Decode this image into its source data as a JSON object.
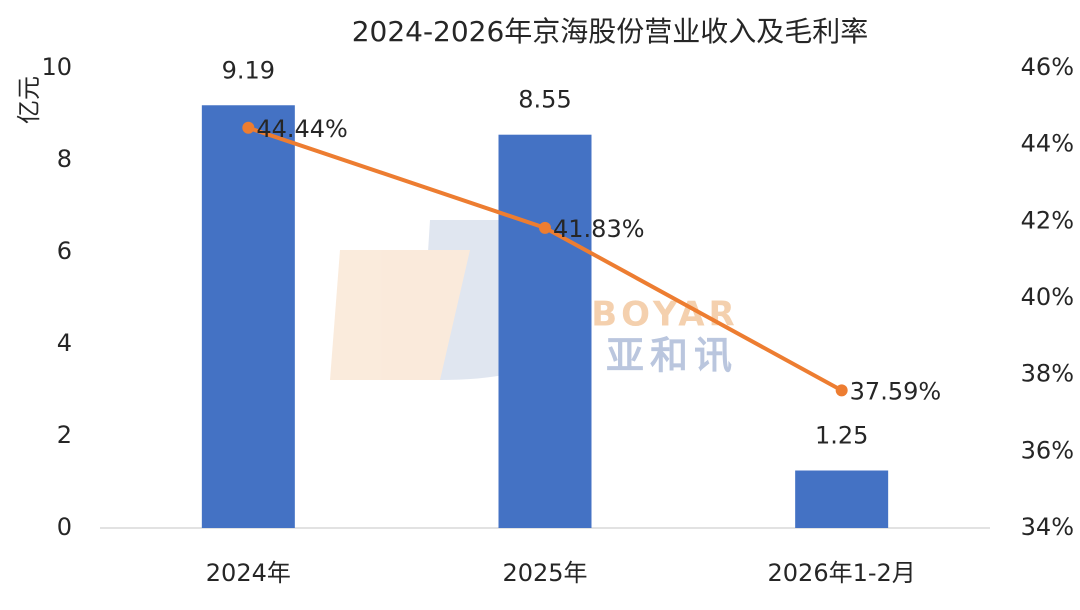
{
  "chart_data": {
    "type": "bar-line",
    "title": "2024-2026年京海股份营业收入及毛利率",
    "y_label": "亿元",
    "categories": [
      "2024年",
      "2025年",
      "2026年1-2月"
    ],
    "series": [
      {
        "type": "bar",
        "color": "#4472c4",
        "values": [
          9.19,
          8.55,
          1.25
        ]
      },
      {
        "type": "line",
        "axis": "y2",
        "color": "#ed7d31",
        "values": [
          44.44,
          41.83,
          37.59
        ],
        "value_labels": [
          "44.44%",
          "41.83%",
          "37.59%"
        ]
      }
    ],
    "ylim": [
      0,
      10
    ],
    "yticks": [
      0,
      2,
      4,
      6,
      8,
      10
    ],
    "y2lim": [
      34,
      46
    ],
    "y2ticks": [
      {
        "value": 34,
        "label": "34%"
      },
      {
        "value": 36,
        "label": "36%"
      },
      {
        "value": 38,
        "label": "38%"
      },
      {
        "value": 40,
        "label": "40%"
      },
      {
        "value": 42,
        "label": "42%"
      },
      {
        "value": 44,
        "label": "44%"
      },
      {
        "value": 46,
        "label": "46%"
      }
    ],
    "grid": false,
    "watermark": {
      "text": "BOYAR",
      "subtext": "亚和讯"
    }
  }
}
